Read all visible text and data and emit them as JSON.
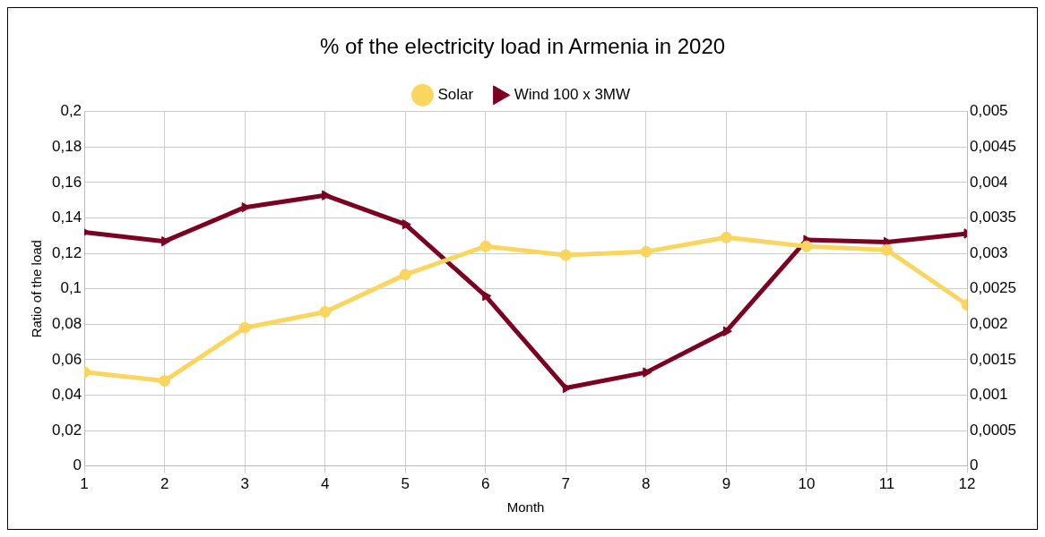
{
  "chart_data": {
    "type": "line",
    "title": "% of the electricity load in Armenia in 2020",
    "xlabel": "Month",
    "ylabel": "Ratio of the load",
    "x": [
      1,
      2,
      3,
      4,
      5,
      6,
      7,
      8,
      9,
      10,
      11,
      12
    ],
    "xlim": [
      1,
      12
    ],
    "xticks": [
      1,
      2,
      3,
      4,
      5,
      6,
      7,
      8,
      9,
      10,
      11,
      12
    ],
    "series": [
      {
        "name": "Solar",
        "color": "#fad55f",
        "marker": "circle",
        "values": [
          0.053,
          0.048,
          0.078,
          0.087,
          0.108,
          0.124,
          0.119,
          0.121,
          0.129,
          0.124,
          0.122,
          0.091
        ]
      },
      {
        "name": "Wind 100 x 3MW",
        "color": "#7b0022",
        "marker": "triangle",
        "axis": "y2",
        "values": [
          0.0033,
          0.00317,
          0.00365,
          0.00382,
          0.00341,
          0.0024,
          0.0011,
          0.00132,
          0.0019,
          0.00319,
          0.00316,
          0.00328
        ]
      }
    ],
    "ylim": [
      0,
      0.2
    ],
    "yticks": [
      {
        "value": 0,
        "label": "0"
      },
      {
        "value": 0.02,
        "label": "0,02"
      },
      {
        "value": 0.04,
        "label": "0,04"
      },
      {
        "value": 0.06,
        "label": "0,06"
      },
      {
        "value": 0.08,
        "label": "0,08"
      },
      {
        "value": 0.1,
        "label": "0,1"
      },
      {
        "value": 0.12,
        "label": "0,12"
      },
      {
        "value": 0.14,
        "label": "0,14"
      },
      {
        "value": 0.16,
        "label": "0,16"
      },
      {
        "value": 0.18,
        "label": "0,18"
      },
      {
        "value": 0.2,
        "label": "0,2"
      }
    ],
    "y2lim": [
      0,
      0.005
    ],
    "y2ticks": [
      {
        "value": 0,
        "label": "0"
      },
      {
        "value": 0.0005,
        "label": "0,0005"
      },
      {
        "value": 0.001,
        "label": "0,001"
      },
      {
        "value": 0.0015,
        "label": "0,0015"
      },
      {
        "value": 0.002,
        "label": "0,002"
      },
      {
        "value": 0.0025,
        "label": "0,0025"
      },
      {
        "value": 0.003,
        "label": "0,003"
      },
      {
        "value": 0.0035,
        "label": "0,0035"
      },
      {
        "value": 0.004,
        "label": "0,004"
      },
      {
        "value": 0.0045,
        "label": "0,0045"
      },
      {
        "value": 0.005,
        "label": "0,005"
      }
    ],
    "grid": true,
    "legend": "top",
    "line_style": "solid"
  }
}
